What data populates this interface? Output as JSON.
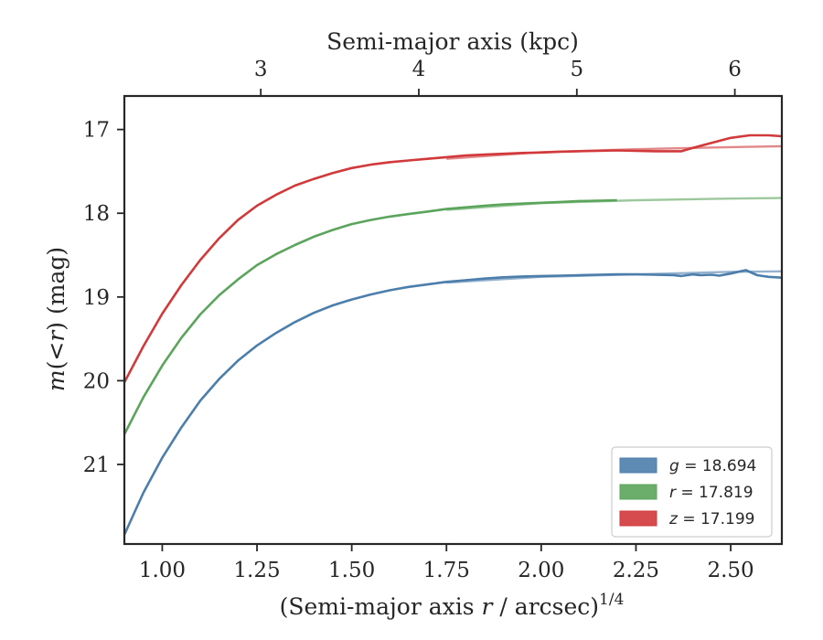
{
  "chart_data": {
    "type": "line",
    "xlabel_bottom_prefix": "(Semi-major axis ",
    "xlabel_bottom_var": "r",
    "xlabel_bottom_suffix": " / arcsec)",
    "xlabel_bottom_exp": "1/4",
    "xlabel_top": "Semi-major axis (kpc)",
    "ylabel_var": "m",
    "ylabel_open": "(",
    "ylabel_lt": "<",
    "ylabel_r": "r",
    "ylabel_close": ")",
    "ylabel_unit": " (mag)",
    "xlim": [
      0.9,
      2.635
    ],
    "ylim": [
      21.95,
      16.6
    ],
    "y_inverted": true,
    "x_ticks": [
      1.0,
      1.25,
      1.5,
      1.75,
      2.0,
      2.25,
      2.5
    ],
    "x_tick_labels": [
      "1.00",
      "1.25",
      "1.50",
      "1.75",
      "2.00",
      "2.25",
      "2.50"
    ],
    "y_ticks": [
      17,
      18,
      19,
      20,
      21
    ],
    "y_tick_labels": [
      "17",
      "18",
      "19",
      "20",
      "21"
    ],
    "top_ticks_kpc": [
      3,
      4,
      5,
      6
    ],
    "top_tick_labels": [
      "3",
      "4",
      "5",
      "6"
    ],
    "top_tick_positions_x": [
      1.26,
      1.677,
      2.094,
      2.511
    ],
    "legend_position": "lower-right",
    "series": [
      {
        "name": "g",
        "label": "= 18.694",
        "color": "#4c7eac",
        "x": [
          0.9,
          0.95,
          1.0,
          1.05,
          1.1,
          1.15,
          1.2,
          1.25,
          1.3,
          1.35,
          1.4,
          1.45,
          1.5,
          1.55,
          1.6,
          1.65,
          1.7,
          1.75,
          1.8,
          1.85,
          1.9,
          1.95,
          2.0,
          2.05,
          2.1,
          2.15,
          2.2,
          2.25,
          2.3,
          2.35,
          2.37,
          2.4,
          2.42,
          2.45,
          2.47,
          2.5,
          2.52,
          2.54,
          2.57,
          2.6,
          2.635
        ],
        "y": [
          21.84,
          21.34,
          20.92,
          20.56,
          20.24,
          19.98,
          19.76,
          19.58,
          19.43,
          19.3,
          19.19,
          19.1,
          19.03,
          18.97,
          18.92,
          18.88,
          18.85,
          18.82,
          18.8,
          18.78,
          18.765,
          18.755,
          18.75,
          18.745,
          18.74,
          18.735,
          18.73,
          18.73,
          18.735,
          18.74,
          18.75,
          18.73,
          18.74,
          18.735,
          18.745,
          18.72,
          18.7,
          18.68,
          18.74,
          18.76,
          18.77
        ],
        "model_x": [
          1.75,
          2.0,
          2.25,
          2.5,
          2.635
        ],
        "model_y": [
          18.83,
          18.76,
          18.73,
          18.7,
          18.694
        ]
      },
      {
        "name": "r",
        "label": "= 17.819",
        "color": "#5ba45b",
        "x": [
          0.9,
          0.95,
          1.0,
          1.05,
          1.1,
          1.15,
          1.2,
          1.25,
          1.3,
          1.35,
          1.4,
          1.45,
          1.5,
          1.55,
          1.6,
          1.65,
          1.7,
          1.75,
          1.8,
          1.85,
          1.9,
          1.95,
          2.0,
          2.05,
          2.1,
          2.15,
          2.2
        ],
        "y": [
          20.64,
          20.2,
          19.82,
          19.49,
          19.21,
          18.98,
          18.79,
          18.62,
          18.49,
          18.38,
          18.28,
          18.2,
          18.13,
          18.08,
          18.04,
          18.01,
          17.98,
          17.95,
          17.93,
          17.91,
          17.895,
          17.885,
          17.875,
          17.865,
          17.855,
          17.85,
          17.845
        ],
        "model_x": [
          1.75,
          2.0,
          2.25,
          2.5,
          2.635
        ],
        "model_y": [
          17.96,
          17.88,
          17.845,
          17.825,
          17.819
        ]
      },
      {
        "name": "z",
        "label": "= 17.199",
        "color": "#d1393b",
        "x": [
          0.9,
          0.95,
          1.0,
          1.05,
          1.1,
          1.15,
          1.2,
          1.25,
          1.3,
          1.35,
          1.4,
          1.45,
          1.5,
          1.55,
          1.6,
          1.65,
          1.7,
          1.75,
          1.8,
          1.85,
          1.9,
          1.95,
          2.0,
          2.05,
          2.1,
          2.15,
          2.2,
          2.25,
          2.3,
          2.35,
          2.37,
          2.4,
          2.45,
          2.5,
          2.55,
          2.6,
          2.635
        ],
        "y": [
          20.02,
          19.59,
          19.2,
          18.86,
          18.56,
          18.3,
          18.08,
          17.91,
          17.78,
          17.67,
          17.59,
          17.52,
          17.46,
          17.42,
          17.39,
          17.37,
          17.35,
          17.33,
          17.31,
          17.3,
          17.29,
          17.28,
          17.275,
          17.265,
          17.26,
          17.255,
          17.25,
          17.255,
          17.26,
          17.26,
          17.26,
          17.22,
          17.16,
          17.1,
          17.07,
          17.07,
          17.08
        ],
        "model_x": [
          1.75,
          2.0,
          2.25,
          2.5,
          2.635
        ],
        "model_y": [
          17.35,
          17.27,
          17.235,
          17.21,
          17.199
        ]
      }
    ]
  }
}
